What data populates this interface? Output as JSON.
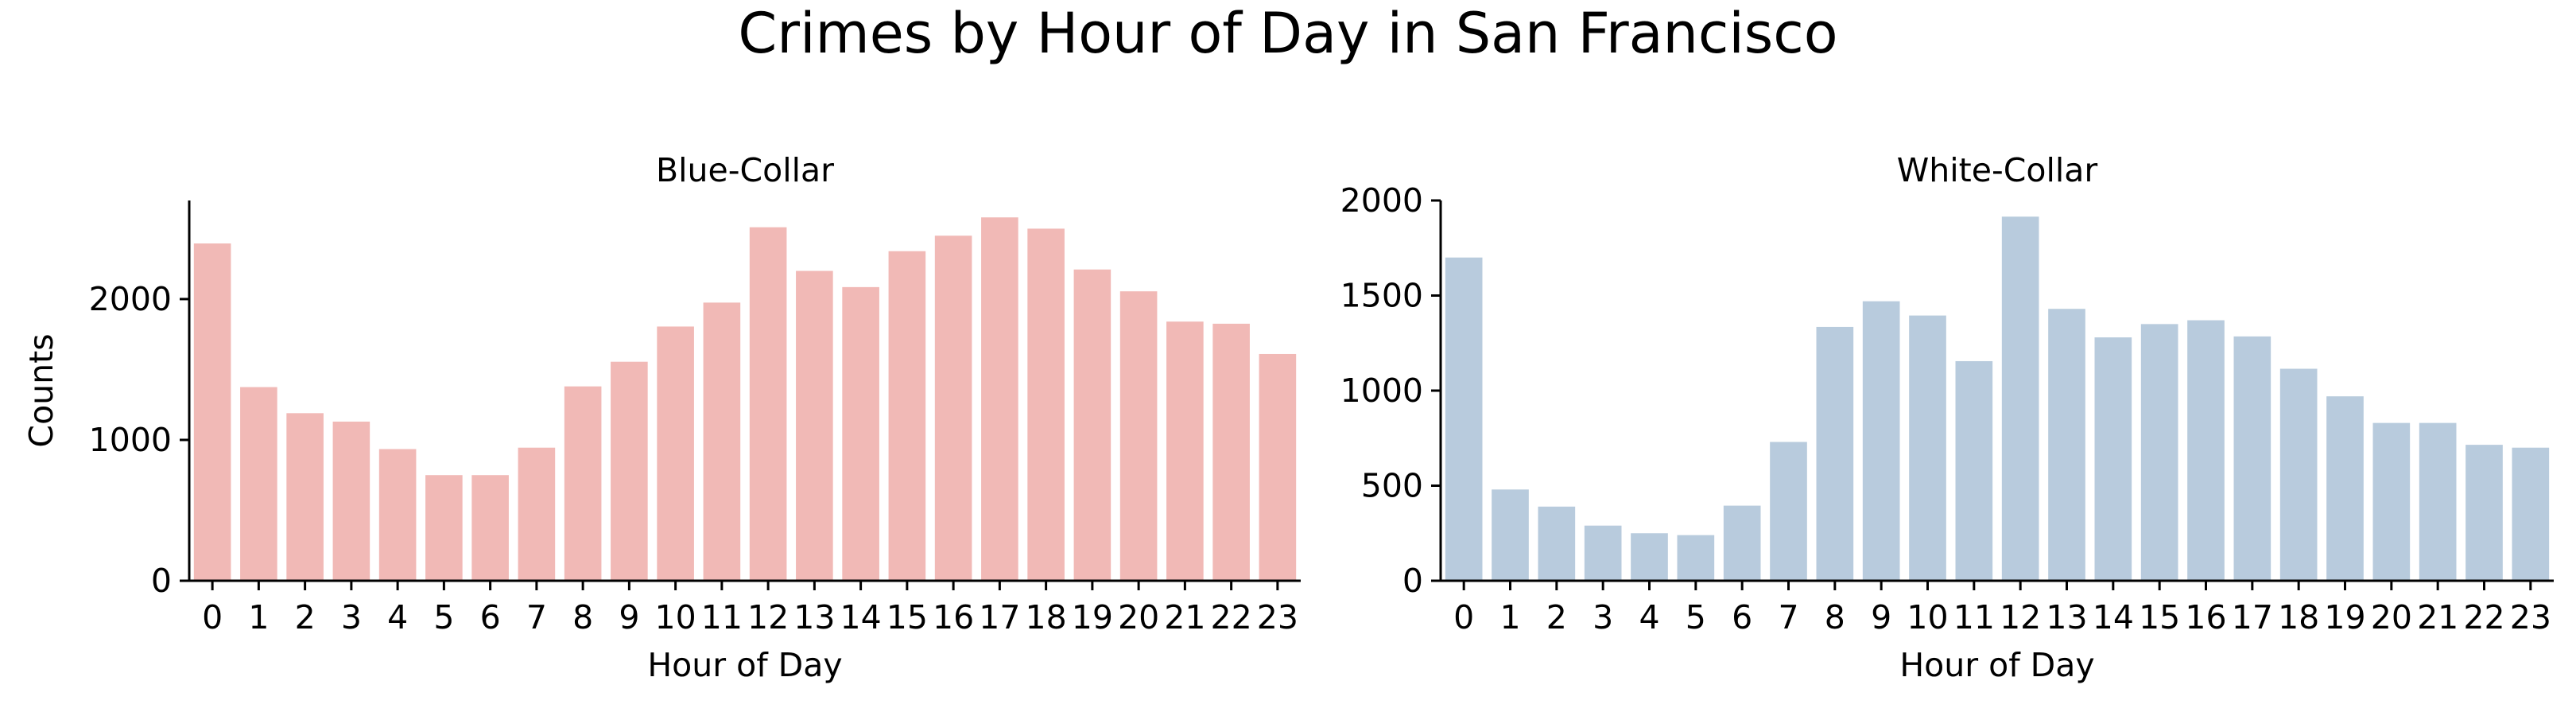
{
  "title": "Crimes by Hour of Day in San Francisco",
  "colors": {
    "blue_collar": "#f1b9b6",
    "white_collar": "#b8cbdd",
    "axis": "#000000"
  },
  "chart_data": [
    {
      "type": "bar",
      "title": "Blue-Collar",
      "xlabel": "Hour of Day",
      "ylabel": "Counts",
      "categories": [
        "0",
        "1",
        "2",
        "3",
        "4",
        "5",
        "6",
        "7",
        "8",
        "9",
        "10",
        "11",
        "12",
        "13",
        "14",
        "15",
        "16",
        "17",
        "18",
        "19",
        "20",
        "21",
        "22",
        "23"
      ],
      "values": [
        2395,
        1375,
        1190,
        1130,
        935,
        750,
        750,
        945,
        1380,
        1555,
        1805,
        1975,
        2510,
        2200,
        2085,
        2340,
        2450,
        2580,
        2500,
        2210,
        2055,
        1840,
        1825,
        1610
      ],
      "ylim": [
        0,
        2700
      ],
      "yticks": [
        0,
        1000,
        2000
      ],
      "color": "#f1b9b6"
    },
    {
      "type": "bar",
      "title": "White-Collar",
      "xlabel": "Hour of Day",
      "ylabel": "",
      "categories": [
        "0",
        "1",
        "2",
        "3",
        "4",
        "5",
        "6",
        "7",
        "8",
        "9",
        "10",
        "11",
        "12",
        "13",
        "14",
        "15",
        "16",
        "17",
        "18",
        "19",
        "20",
        "21",
        "22",
        "23"
      ],
      "values": [
        1700,
        480,
        390,
        290,
        250,
        240,
        395,
        730,
        1335,
        1470,
        1395,
        1155,
        1915,
        1430,
        1280,
        1350,
        1370,
        1285,
        1115,
        970,
        830,
        830,
        715,
        700
      ],
      "ylim": [
        0,
        2000
      ],
      "yticks": [
        0,
        500,
        1000,
        1500,
        2000
      ],
      "color": "#b8cbdd"
    }
  ]
}
